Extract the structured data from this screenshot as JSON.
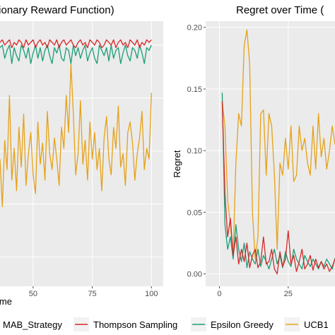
{
  "colors": {
    "panel_bg": "#ebebeb",
    "grid_major": "#ffffff",
    "thompson": "#d62728",
    "epsilon": "#1b9e77",
    "ucb1": "#e6a117"
  },
  "legend": {
    "title": "MAB_Strategy",
    "items": [
      {
        "label": "Thompson Sampling",
        "color": "#d62728"
      },
      {
        "label": "Epsilon Greedy",
        "color": "#1b9e77"
      },
      {
        "label": "UCB1",
        "color": "#e6a117"
      }
    ]
  },
  "chart_data": [
    {
      "type": "line",
      "title": "tionary Reward Function)",
      "xlabel": "ime",
      "ylabel": "",
      "xlim": [
        36,
        105
      ],
      "ylim": [
        0,
        1.0
      ],
      "x_ticks": [
        50,
        75,
        100
      ],
      "x_tick_labels": [
        "50",
        "75",
        "100"
      ],
      "y_ticks": [],
      "grid": true,
      "series": [
        {
          "name": "Thompson Sampling",
          "color": "#d62728",
          "x": [
            36,
            37,
            38,
            39,
            40,
            41,
            42,
            43,
            44,
            45,
            46,
            47,
            48,
            49,
            50,
            51,
            52,
            53,
            54,
            55,
            56,
            57,
            58,
            59,
            60,
            61,
            62,
            63,
            64,
            65,
            66,
            67,
            68,
            69,
            70,
            71,
            72,
            73,
            74,
            75,
            76,
            77,
            78,
            79,
            80,
            81,
            82,
            83,
            84,
            85,
            86,
            87,
            88,
            89,
            90,
            91,
            92,
            93,
            94,
            95,
            96,
            97,
            98,
            99,
            100
          ],
          "y": [
            0.92,
            0.93,
            0.91,
            0.92,
            0.93,
            0.9,
            0.92,
            0.91,
            0.93,
            0.92,
            0.9,
            0.93,
            0.91,
            0.92,
            0.93,
            0.9,
            0.92,
            0.93,
            0.91,
            0.92,
            0.9,
            0.93,
            0.92,
            0.91,
            0.93,
            0.9,
            0.92,
            0.93,
            0.91,
            0.92,
            0.93,
            0.91,
            0.9,
            0.92,
            0.93,
            0.91,
            0.92,
            0.9,
            0.93,
            0.92,
            0.91,
            0.93,
            0.92,
            0.9,
            0.91,
            0.93,
            0.92,
            0.91,
            0.93,
            0.9,
            0.92,
            0.93,
            0.91,
            0.92,
            0.9,
            0.93,
            0.92,
            0.91,
            0.93,
            0.9,
            0.92,
            0.91,
            0.93,
            0.92,
            0.93
          ]
        },
        {
          "name": "Epsilon Greedy",
          "color": "#1b9e77",
          "x": [
            36,
            37,
            38,
            39,
            40,
            41,
            42,
            43,
            44,
            45,
            46,
            47,
            48,
            49,
            50,
            51,
            52,
            53,
            54,
            55,
            56,
            57,
            58,
            59,
            60,
            61,
            62,
            63,
            64,
            65,
            66,
            67,
            68,
            69,
            70,
            71,
            72,
            73,
            74,
            75,
            76,
            77,
            78,
            79,
            80,
            81,
            82,
            83,
            84,
            85,
            86,
            87,
            88,
            89,
            90,
            91,
            92,
            93,
            94,
            95,
            96,
            97,
            98,
            99,
            100
          ],
          "y": [
            0.9,
            0.91,
            0.86,
            0.89,
            0.91,
            0.84,
            0.9,
            0.87,
            0.85,
            0.91,
            0.89,
            0.86,
            0.9,
            0.84,
            0.88,
            0.91,
            0.86,
            0.9,
            0.85,
            0.89,
            0.91,
            0.87,
            0.84,
            0.9,
            0.88,
            0.91,
            0.86,
            0.85,
            0.9,
            0.89,
            0.84,
            0.91,
            0.87,
            0.9,
            0.86,
            0.89,
            0.91,
            0.85,
            0.88,
            0.9,
            0.86,
            0.84,
            0.91,
            0.89,
            0.87,
            0.9,
            0.85,
            0.91,
            0.86,
            0.89,
            0.9,
            0.84,
            0.88,
            0.91,
            0.87,
            0.85,
            0.9,
            0.89,
            0.86,
            0.91,
            0.88,
            0.84,
            0.9,
            0.89,
            0.91
          ]
        },
        {
          "name": "UCB1",
          "color": "#e6a117",
          "x": [
            36,
            37,
            38,
            39,
            40,
            41,
            42,
            43,
            44,
            45,
            46,
            47,
            48,
            49,
            50,
            51,
            52,
            53,
            54,
            55,
            56,
            57,
            58,
            59,
            60,
            61,
            62,
            63,
            64,
            65,
            66,
            67,
            68,
            69,
            70,
            71,
            72,
            73,
            74,
            75,
            76,
            77,
            78,
            79,
            80,
            81,
            82,
            83,
            84,
            85,
            86,
            87,
            88,
            89,
            90,
            91,
            92,
            93,
            94,
            95,
            96,
            97,
            98,
            99,
            100
          ],
          "y": [
            0.48,
            0.3,
            0.55,
            0.44,
            0.72,
            0.4,
            0.52,
            0.36,
            0.6,
            0.45,
            0.65,
            0.38,
            0.5,
            0.58,
            0.42,
            0.35,
            0.62,
            0.46,
            0.54,
            0.4,
            0.66,
            0.5,
            0.44,
            0.56,
            0.48,
            0.38,
            0.6,
            0.52,
            0.72,
            0.58,
            0.84,
            0.65,
            0.42,
            0.5,
            0.7,
            0.46,
            0.55,
            0.4,
            0.62,
            0.48,
            0.58,
            0.44,
            0.52,
            0.36,
            0.56,
            0.64,
            0.48,
            0.42,
            0.6,
            0.52,
            0.68,
            0.45,
            0.5,
            0.38,
            0.58,
            0.62,
            0.54,
            0.4,
            0.5,
            0.56,
            0.66,
            0.44,
            0.52,
            0.48,
            0.73
          ]
        }
      ]
    },
    {
      "type": "line",
      "title": "Regret over Time (",
      "xlabel": "",
      "ylabel": "Regret",
      "xlim": [
        -5,
        42
      ],
      "ylim": [
        -0.01,
        0.205
      ],
      "x_ticks": [
        0,
        25
      ],
      "x_tick_labels": [
        "0",
        "25"
      ],
      "y_ticks": [
        0.0,
        0.05,
        0.1,
        0.15,
        0.2
      ],
      "y_tick_labels": [
        "0.00",
        "0.05",
        "0.10",
        "0.15",
        "0.20"
      ],
      "grid": true,
      "series": [
        {
          "name": "Thompson Sampling",
          "color": "#d62728",
          "x": [
            1,
            2,
            3,
            4,
            5,
            6,
            7,
            8,
            9,
            10,
            11,
            12,
            13,
            14,
            15,
            16,
            17,
            18,
            19,
            20,
            21,
            22,
            23,
            24,
            25,
            26,
            27,
            28,
            29,
            30,
            31,
            32,
            33,
            34,
            35,
            36,
            37,
            38,
            39,
            40,
            41,
            42
          ],
          "y": [
            0.14,
            0.065,
            0.03,
            0.045,
            0.015,
            0.03,
            0.008,
            0.02,
            0.01,
            0.025,
            0.005,
            0.015,
            0.02,
            0.005,
            0.01,
            0.03,
            0.008,
            0.01,
            0.02,
            0.004,
            0.0,
            0.018,
            0.006,
            0.012,
            0.035,
            0.008,
            0.015,
            0.002,
            0.01,
            0.02,
            0.004,
            0.008,
            0.015,
            0.003,
            0.012,
            0.005,
            0.01,
            0.004,
            0.008,
            0.002,
            0.006,
            0.012
          ]
        },
        {
          "name": "Epsilon Greedy",
          "color": "#1b9e77",
          "x": [
            1,
            2,
            3,
            4,
            5,
            6,
            7,
            8,
            9,
            10,
            11,
            12,
            13,
            14,
            15,
            16,
            17,
            18,
            19,
            20,
            21,
            22,
            23,
            24,
            25,
            26,
            27,
            28,
            29,
            30,
            31,
            32,
            33,
            34,
            35,
            36,
            37,
            38,
            39,
            40,
            41,
            42
          ],
          "y": [
            0.147,
            0.04,
            0.02,
            0.03,
            0.012,
            0.04,
            0.02,
            0.01,
            0.025,
            0.005,
            0.018,
            0.012,
            0.008,
            0.02,
            0.006,
            0.015,
            0.01,
            0.004,
            0.012,
            0.02,
            0.008,
            0.015,
            0.005,
            0.018,
            0.01,
            0.006,
            0.02,
            0.012,
            0.008,
            0.004,
            0.015,
            0.01,
            0.006,
            0.012,
            0.008,
            0.004,
            0.01,
            0.006,
            0.012,
            0.008,
            0.004,
            0.013
          ]
        },
        {
          "name": "UCB1",
          "color": "#e6a117",
          "x": [
            1,
            2,
            3,
            4,
            5,
            6,
            7,
            8,
            9,
            10,
            11,
            12,
            13,
            14,
            15,
            16,
            17,
            18,
            19,
            20,
            21,
            22,
            23,
            24,
            25,
            26,
            27,
            28,
            29,
            30,
            31,
            32,
            33,
            34,
            35,
            36,
            37,
            38,
            39,
            40,
            41,
            42
          ],
          "y": [
            0.14,
            0.12,
            0.06,
            0.04,
            0.015,
            0.09,
            0.13,
            0.12,
            0.185,
            0.198,
            0.17,
            0.05,
            0.012,
            0.03,
            0.13,
            0.133,
            0.08,
            0.13,
            0.12,
            0.08,
            0.02,
            0.09,
            0.08,
            0.11,
            0.085,
            0.12,
            0.075,
            0.08,
            0.12,
            0.1,
            0.11,
            0.09,
            0.08,
            0.12,
            0.085,
            0.13,
            0.095,
            0.11,
            0.085,
            0.1,
            0.12,
            0.105
          ]
        }
      ]
    }
  ]
}
